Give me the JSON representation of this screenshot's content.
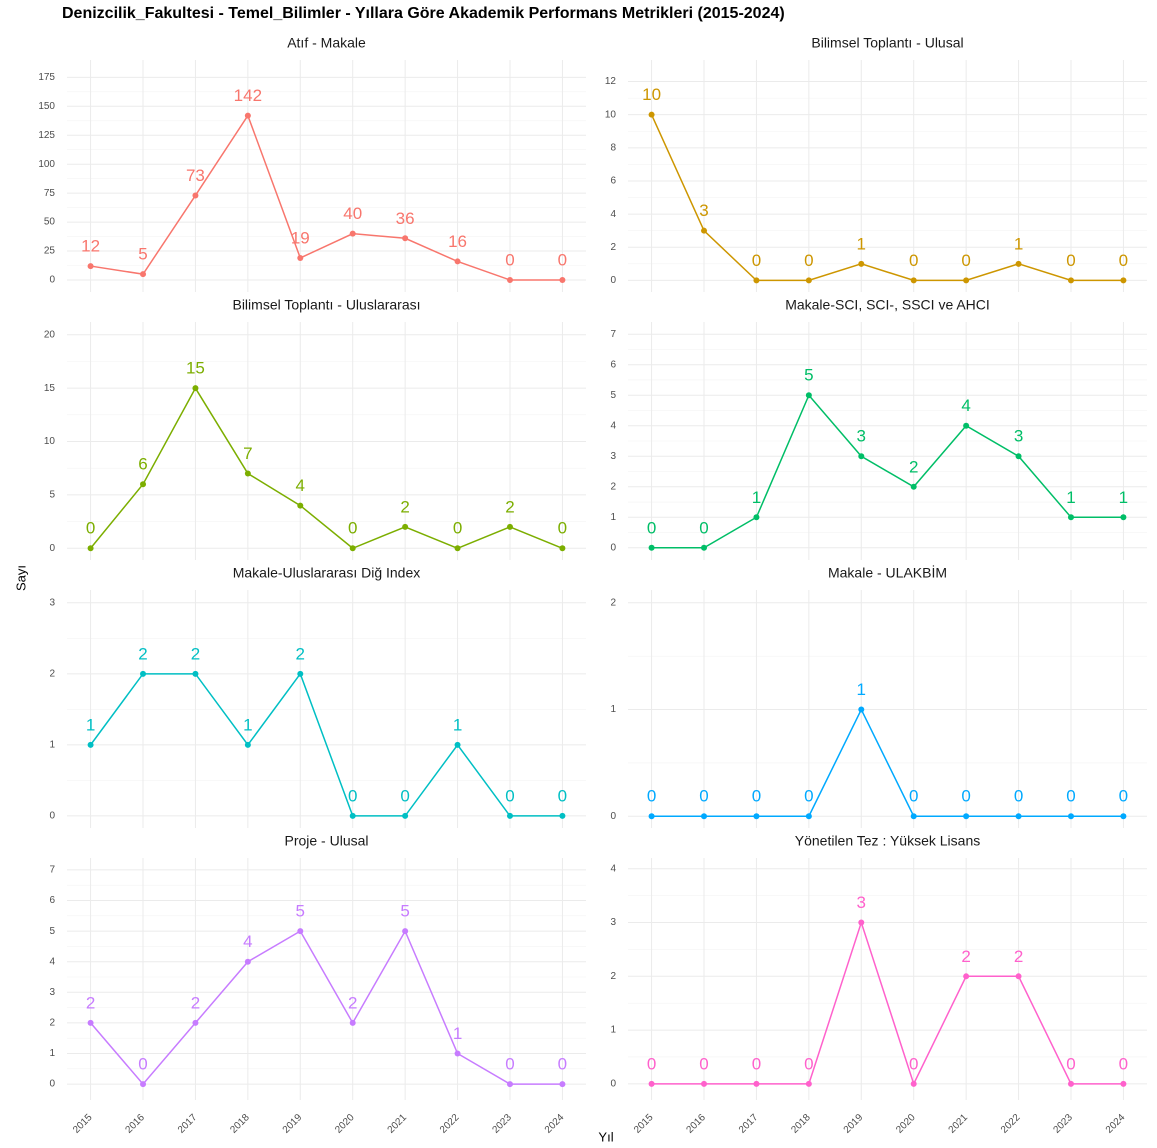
{
  "title": "Denizcilik_Fakultesi  -  Temel_Bilimler  - Yıllara Göre Akademik Performans Metrikleri (2015-2024)",
  "xlabel": "Yıl",
  "ylabel": "Sayı",
  "chart_data": [
    {
      "type": "line",
      "title": "Atıf - Makale",
      "color": "#F8766D",
      "grid": true,
      "x": [
        2015,
        2016,
        2017,
        2018,
        2019,
        2020,
        2021,
        2022,
        2023,
        2024
      ],
      "xlim": [
        2014.55,
        2024.45
      ],
      "values": [
        12,
        5,
        73,
        142,
        19,
        40,
        36,
        16,
        0,
        0
      ],
      "ylim": [
        -10.4,
        190
      ],
      "yticks": [
        0,
        25,
        50,
        75,
        100,
        125,
        150,
        175
      ]
    },
    {
      "type": "line",
      "title": "Bilimsel Toplantı - Ulusal",
      "color": "#CD9600",
      "grid": true,
      "x": [
        2015,
        2016,
        2017,
        2018,
        2019,
        2020,
        2021,
        2022,
        2023,
        2024
      ],
      "xlim": [
        2014.55,
        2024.45
      ],
      "values": [
        10,
        3,
        0,
        0,
        1,
        0,
        0,
        1,
        0,
        0
      ],
      "ylim": [
        -0.7,
        13.3
      ],
      "yticks": [
        0,
        2,
        4,
        6,
        8,
        10,
        12
      ]
    },
    {
      "type": "line",
      "title": "Bilimsel Toplantı - Uluslararası",
      "color": "#7CAE00",
      "grid": true,
      "x": [
        2015,
        2016,
        2017,
        2018,
        2019,
        2020,
        2021,
        2022,
        2023,
        2024
      ],
      "xlim": [
        2014.55,
        2024.45
      ],
      "values": [
        0,
        6,
        15,
        7,
        4,
        0,
        2,
        0,
        2,
        0
      ],
      "ylim": [
        -1.1,
        21.2
      ],
      "yticks": [
        0,
        5,
        10,
        15,
        20
      ]
    },
    {
      "type": "line",
      "title": "Makale-SCI, SCI-, SSCI ve AHCI",
      "color": "#00BE67",
      "grid": true,
      "x": [
        2015,
        2016,
        2017,
        2018,
        2019,
        2020,
        2021,
        2022,
        2023,
        2024
      ],
      "xlim": [
        2014.55,
        2024.45
      ],
      "values": [
        0,
        0,
        1,
        5,
        3,
        2,
        4,
        3,
        1,
        1
      ],
      "ylim": [
        -0.4,
        7.4
      ],
      "yticks": [
        0,
        1,
        2,
        3,
        4,
        5,
        6,
        7
      ]
    },
    {
      "type": "line",
      "title": "Makale-Uluslararası Diğ Index",
      "color": "#00BFC4",
      "grid": true,
      "x": [
        2015,
        2016,
        2017,
        2018,
        2019,
        2020,
        2021,
        2022,
        2023,
        2024
      ],
      "xlim": [
        2014.55,
        2024.45
      ],
      "values": [
        1,
        2,
        2,
        1,
        2,
        0,
        0,
        1,
        0,
        0
      ],
      "ylim": [
        -0.17,
        3.18
      ],
      "yticks": [
        0,
        1,
        2,
        3
      ]
    },
    {
      "type": "line",
      "title": "Makale - ULAKBİM",
      "color": "#00A9FF",
      "grid": true,
      "x": [
        2015,
        2016,
        2017,
        2018,
        2019,
        2020,
        2021,
        2022,
        2023,
        2024
      ],
      "xlim": [
        2014.55,
        2024.45
      ],
      "values": [
        0,
        0,
        0,
        0,
        1,
        0,
        0,
        0,
        0,
        0
      ],
      "ylim": [
        -0.11,
        2.12
      ],
      "yticks": [
        0,
        1,
        2
      ]
    },
    {
      "type": "line",
      "title": "Proje - Ulusal",
      "color": "#C77CFF",
      "grid": true,
      "x": [
        2015,
        2016,
        2017,
        2018,
        2019,
        2020,
        2021,
        2022,
        2023,
        2024
      ],
      "xlim": [
        2014.55,
        2024.45
      ],
      "values": [
        2,
        0,
        2,
        4,
        5,
        2,
        5,
        1,
        0,
        0
      ],
      "ylim": [
        -0.52,
        7.39
      ],
      "yticks": [
        0,
        1,
        2,
        3,
        4,
        5,
        6,
        7
      ]
    },
    {
      "type": "line",
      "title": "Yönetilen Tez : Yüksek Lisans",
      "color": "#FF61CC",
      "grid": true,
      "x": [
        2015,
        2016,
        2017,
        2018,
        2019,
        2020,
        2021,
        2022,
        2023,
        2024
      ],
      "xlim": [
        2014.55,
        2024.45
      ],
      "values": [
        0,
        0,
        0,
        0,
        3,
        0,
        2,
        2,
        0,
        0
      ],
      "ylim": [
        -0.3,
        4.2
      ],
      "yticks": [
        0,
        1,
        2,
        3,
        4
      ]
    }
  ]
}
